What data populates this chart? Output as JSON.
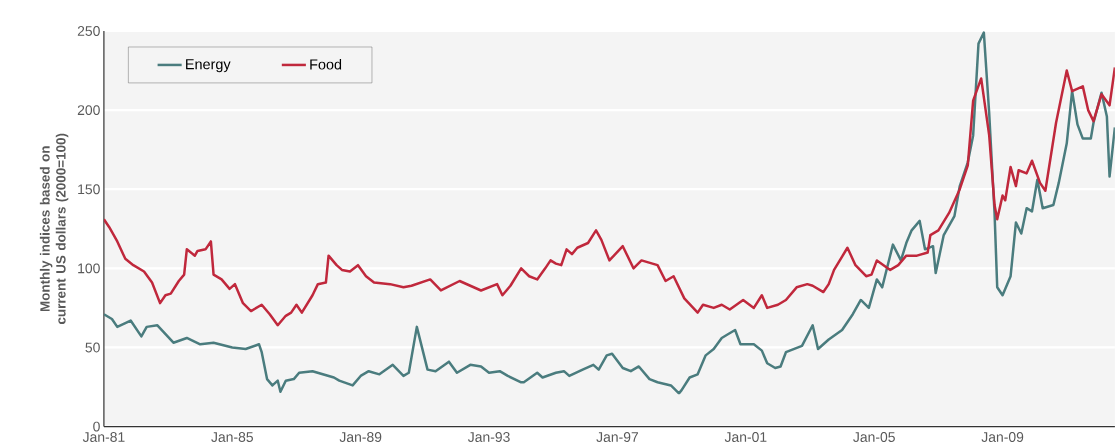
{
  "chart_data": {
    "type": "line",
    "ylabel": "Monthly indices based on current US dollars (2000=100)",
    "xlim": [
      "1981-01",
      "2012-07"
    ],
    "ylim": [
      0,
      250
    ],
    "xticks": [
      {
        "value": "1981-01",
        "label": "Jan-81"
      },
      {
        "value": "1985-01",
        "label": "Jan-85"
      },
      {
        "value": "1989-01",
        "label": "Jan-89"
      },
      {
        "value": "1993-01",
        "label": "Jan-93"
      },
      {
        "value": "1997-01",
        "label": "Jan-97"
      },
      {
        "value": "2001-01",
        "label": "Jan-01"
      },
      {
        "value": "2005-01",
        "label": "Jan-05"
      },
      {
        "value": "2009-01",
        "label": "Jan-09"
      }
    ],
    "yticks": [
      0,
      50,
      100,
      150,
      200,
      250
    ],
    "grid": "y",
    "legend": "top left",
    "marker": "none",
    "line_style": "solid",
    "series": [
      {
        "name": "Energy",
        "color": "#4a7c7e",
        "x": [
          "1981-01",
          "1981-04",
          "1981-06",
          "1981-11",
          "1982-03",
          "1982-05",
          "1982-09",
          "1983-03",
          "1983-08",
          "1984-01",
          "1984-06",
          "1985-01",
          "1985-06",
          "1985-11",
          "1985-12",
          "1986-02",
          "1986-04",
          "1986-06",
          "1986-07",
          "1986-09",
          "1986-12",
          "1987-02",
          "1987-07",
          "1988-03",
          "1988-05",
          "1988-10",
          "1989-01",
          "1989-04",
          "1989-08",
          "1990-01",
          "1990-05",
          "1990-07",
          "1990-10",
          "1991-02",
          "1991-05",
          "1991-10",
          "1992-01",
          "1992-06",
          "1992-10",
          "1993-01",
          "1993-05",
          "1993-08",
          "1994-01",
          "1994-02",
          "1994-07",
          "1994-09",
          "1995-02",
          "1995-05",
          "1995-07",
          "1995-12",
          "1996-04",
          "1996-06",
          "1996-09",
          "1996-11",
          "1997-03",
          "1997-06",
          "1997-09",
          "1998-01",
          "1998-04",
          "1998-09",
          "1998-12",
          "1999-01",
          "1999-04",
          "1999-07",
          "1999-10",
          "2000-01",
          "2000-04",
          "2000-06",
          "2000-09",
          "2000-11",
          "2001-04",
          "2001-07",
          "2001-09",
          "2001-12",
          "2002-02",
          "2002-04",
          "2002-10",
          "2003-02",
          "2003-04",
          "2003-08",
          "2004-01",
          "2004-05",
          "2004-08",
          "2004-11",
          "2005-02",
          "2005-04",
          "2005-08",
          "2005-11",
          "2006-01",
          "2006-03",
          "2006-06",
          "2006-08",
          "2006-11",
          "2006-12",
          "2007-03",
          "2007-07",
          "2007-09",
          "2007-12",
          "2008-02",
          "2008-04",
          "2008-06",
          "2008-08",
          "2008-10",
          "2008-11",
          "2009-01",
          "2009-04",
          "2009-06",
          "2009-08",
          "2009-10",
          "2009-12",
          "2010-02",
          "2010-04",
          "2010-08",
          "2010-10",
          "2011-01",
          "2011-03",
          "2011-05",
          "2011-07",
          "2011-10",
          "2011-11",
          "2012-02",
          "2012-04",
          "2012-05",
          "2012-07"
        ],
        "values": [
          71,
          68,
          63,
          67,
          57,
          63,
          64,
          53,
          56,
          52,
          53,
          50,
          49,
          52,
          47,
          30,
          26,
          29,
          22,
          29,
          30,
          34,
          35,
          31,
          29,
          26,
          32,
          35,
          33,
          39,
          32,
          34,
          63,
          36,
          35,
          41,
          34,
          39,
          38,
          34,
          35,
          32,
          28,
          28,
          34,
          31,
          34,
          35,
          32,
          36,
          39,
          36,
          45,
          46,
          37,
          35,
          38,
          30,
          28,
          26,
          21,
          23,
          31,
          33,
          45,
          49,
          56,
          58,
          61,
          52,
          52,
          48,
          40,
          37,
          38,
          47,
          51,
          64,
          49,
          55,
          61,
          71,
          80,
          75,
          93,
          88,
          115,
          105,
          116,
          124,
          130,
          112,
          114,
          97,
          121,
          133,
          152,
          167,
          184,
          242,
          249,
          198,
          135,
          88,
          83,
          95,
          129,
          122,
          138,
          136,
          156,
          138,
          140,
          154,
          179,
          212,
          191,
          182,
          182,
          192,
          211,
          196,
          158,
          189
        ]
      },
      {
        "name": "Food",
        "color": "#c0283c",
        "x": [
          "1981-01",
          "1981-03",
          "1981-06",
          "1981-09",
          "1981-12",
          "1982-04",
          "1982-07",
          "1982-10",
          "1982-12",
          "1983-02",
          "1983-05",
          "1983-07",
          "1983-08",
          "1983-11",
          "1983-12",
          "1984-03",
          "1984-05",
          "1984-06",
          "1984-09",
          "1984-12",
          "1985-02",
          "1985-05",
          "1985-08",
          "1985-12",
          "1986-03",
          "1986-06",
          "1986-09",
          "1986-11",
          "1987-01",
          "1987-03",
          "1987-07",
          "1987-09",
          "1987-12",
          "1988-01",
          "1988-04",
          "1988-06",
          "1988-09",
          "1988-12",
          "1989-03",
          "1989-06",
          "1989-12",
          "1990-05",
          "1990-08",
          "1991-03",
          "1991-07",
          "1992-02",
          "1992-10",
          "1993-04",
          "1993-06",
          "1993-09",
          "1994-01",
          "1994-04",
          "1994-07",
          "1994-10",
          "1994-12",
          "1995-02",
          "1995-04",
          "1995-06",
          "1995-08",
          "1995-10",
          "1996-02",
          "1996-05",
          "1996-07",
          "1996-10",
          "1997-03",
          "1997-07",
          "1997-10",
          "1998-04",
          "1998-07",
          "1998-10",
          "1999-02",
          "1999-07",
          "1999-09",
          "2000-01",
          "2000-04",
          "2000-07",
          "2000-12",
          "2001-04",
          "2001-07",
          "2001-09",
          "2002-01",
          "2002-04",
          "2002-08",
          "2002-12",
          "2003-02",
          "2003-06",
          "2003-08",
          "2003-10",
          "2004-03",
          "2004-06",
          "2004-10",
          "2004-12",
          "2005-02",
          "2005-07",
          "2005-10",
          "2006-01",
          "2006-05",
          "2006-09",
          "2006-10",
          "2007-01",
          "2007-05",
          "2007-09",
          "2007-12",
          "2008-02",
          "2008-05",
          "2008-08",
          "2008-10",
          "2008-11",
          "2009-01",
          "2009-02",
          "2009-04",
          "2009-06",
          "2009-07",
          "2009-10",
          "2009-12",
          "2010-03",
          "2010-05",
          "2010-09",
          "2011-01",
          "2011-03",
          "2011-07",
          "2011-09",
          "2011-11",
          "2012-02",
          "2012-05",
          "2012-07"
        ],
        "values": [
          131,
          126,
          117,
          106,
          102,
          98,
          91,
          78,
          83,
          84,
          92,
          96,
          112,
          108,
          111,
          112,
          117,
          96,
          93,
          87,
          90,
          78,
          73,
          77,
          71,
          64,
          70,
          72,
          77,
          72,
          83,
          90,
          91,
          108,
          102,
          99,
          98,
          102,
          95,
          91,
          90,
          88,
          89,
          93,
          86,
          92,
          86,
          90,
          83,
          89,
          100,
          95,
          93,
          100,
          105,
          103,
          102,
          112,
          109,
          113,
          116,
          124,
          118,
          105,
          114,
          100,
          105,
          102,
          92,
          95,
          81,
          72,
          77,
          75,
          77,
          74,
          80,
          75,
          83,
          75,
          77,
          80,
          88,
          90,
          89,
          85,
          90,
          99,
          113,
          102,
          95,
          96,
          105,
          99,
          102,
          108,
          108,
          110,
          121,
          124,
          135,
          150,
          165,
          206,
          220,
          184,
          140,
          131,
          146,
          143,
          164,
          152,
          162,
          160,
          168,
          154,
          149,
          192,
          225,
          212,
          215,
          200,
          193,
          210,
          203,
          227
        ]
      }
    ]
  }
}
